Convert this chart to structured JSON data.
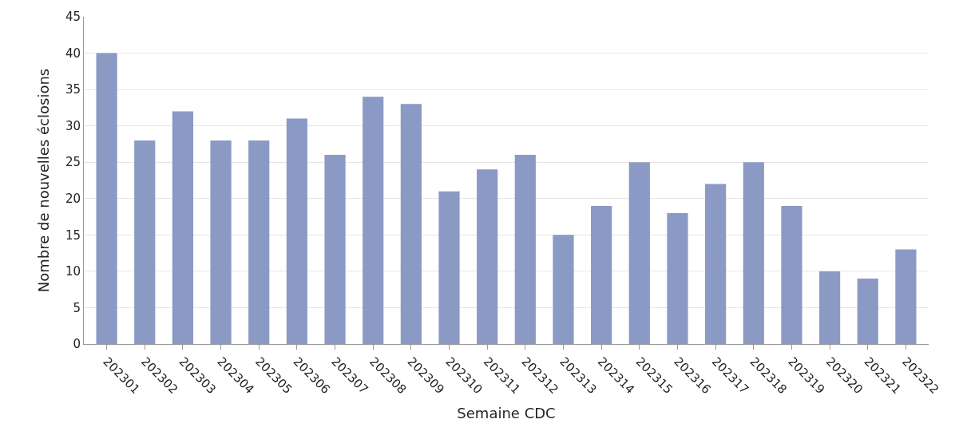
{
  "chart_data": {
    "type": "bar",
    "xlabel": "Semaine CDC",
    "ylabel": "Nombre de nouvelles éclosions",
    "categories": [
      "202301",
      "202302",
      "202303",
      "202304",
      "202305",
      "202306",
      "202307",
      "202308",
      "202309",
      "202310",
      "202311",
      "202312",
      "202313",
      "202314",
      "202315",
      "202316",
      "202317",
      "202318",
      "202319",
      "202320",
      "202321",
      "202322"
    ],
    "values": [
      40,
      28,
      32,
      28,
      28,
      31,
      26,
      34,
      33,
      21,
      24,
      26,
      15,
      19,
      25,
      18,
      22,
      25,
      19,
      10,
      9,
      13
    ],
    "color": "#8b9ac4",
    "ylim": [
      0,
      45
    ],
    "yticks": [
      0,
      5,
      10,
      15,
      20,
      25,
      30,
      35,
      40,
      45
    ],
    "grid": "y"
  }
}
